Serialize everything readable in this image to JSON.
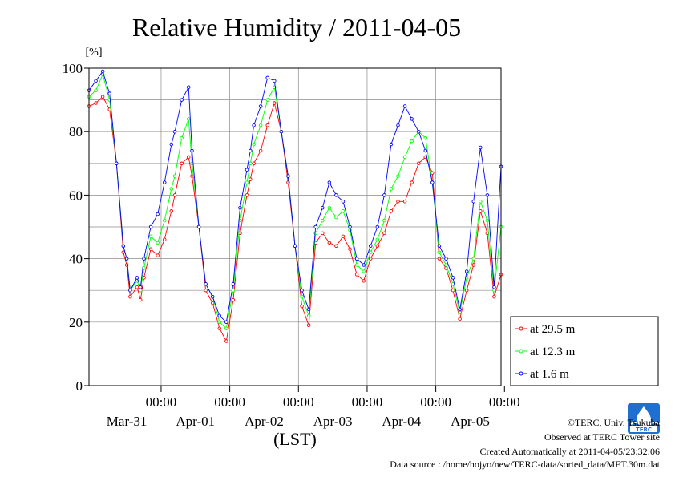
{
  "chart_data": {
    "type": "line",
    "title": "Relative Humidity / 2011-04-05",
    "ylabel": "[%]",
    "xlabel": "(LST)",
    "ylim": [
      0,
      100
    ],
    "y_ticks": [
      "0",
      "20",
      "40",
      "60",
      "80",
      "100"
    ],
    "x_ticks": [
      {
        "time": "00:00",
        "date": "Mar-31"
      },
      {
        "time": "00:00",
        "date": "Apr-01"
      },
      {
        "time": "00:00",
        "date": "Apr-02"
      },
      {
        "time": "00:00",
        "date": "Apr-03"
      },
      {
        "time": "00:00",
        "date": "Apr-04"
      },
      {
        "time": "00:00",
        "date": "Apr-05"
      }
    ],
    "x_range_days": [
      -0.05,
      5.95
    ],
    "grid": true,
    "legend_position": "right",
    "series": [
      {
        "name": "at 29.5 m",
        "color": "#ff0000",
        "x": [
          -0.05,
          0.05,
          0.15,
          0.25,
          0.35,
          0.45,
          0.5,
          0.55,
          0.65,
          0.7,
          0.75,
          0.85,
          0.95,
          1.05,
          1.15,
          1.2,
          1.3,
          1.4,
          1.45,
          1.55,
          1.65,
          1.75,
          1.85,
          1.95,
          2.05,
          2.15,
          2.25,
          2.3,
          2.35,
          2.45,
          2.55,
          2.65,
          2.75,
          2.85,
          2.95,
          3.05,
          3.15,
          3.25,
          3.35,
          3.45,
          3.55,
          3.65,
          3.75,
          3.85,
          3.95,
          4.05,
          4.15,
          4.25,
          4.35,
          4.45,
          4.55,
          4.65,
          4.75,
          4.85,
          4.95,
          5.05,
          5.15,
          5.25,
          5.35,
          5.45,
          5.55,
          5.65,
          5.75,
          5.85,
          5.95
        ],
        "y": [
          88,
          89,
          91,
          87,
          70,
          42,
          38,
          28,
          31,
          27,
          34,
          43,
          41,
          46,
          55,
          60,
          70,
          72,
          66,
          50,
          30,
          26,
          18,
          14,
          27,
          48,
          60,
          65,
          70,
          74,
          82,
          89,
          80,
          64,
          44,
          25,
          19,
          45,
          48,
          45,
          44,
          47,
          43,
          35,
          33,
          40,
          44,
          48,
          55,
          58,
          58,
          64,
          70,
          72,
          67,
          40,
          37,
          30,
          21,
          30,
          38,
          55,
          48,
          28,
          35
        ],
        "markers": true
      },
      {
        "name": "at 12.3 m",
        "color": "#00ff00",
        "x": [
          -0.05,
          0.05,
          0.15,
          0.25,
          0.35,
          0.45,
          0.5,
          0.55,
          0.65,
          0.7,
          0.75,
          0.85,
          0.95,
          1.05,
          1.15,
          1.2,
          1.3,
          1.4,
          1.45,
          1.55,
          1.65,
          1.75,
          1.85,
          1.95,
          2.05,
          2.15,
          2.25,
          2.3,
          2.35,
          2.45,
          2.55,
          2.65,
          2.75,
          2.85,
          2.95,
          3.05,
          3.15,
          3.25,
          3.35,
          3.45,
          3.55,
          3.65,
          3.75,
          3.85,
          3.95,
          4.05,
          4.15,
          4.25,
          4.35,
          4.45,
          4.55,
          4.65,
          4.75,
          4.85,
          4.95,
          5.05,
          5.15,
          5.25,
          5.35,
          5.45,
          5.55,
          5.65,
          5.75,
          5.85,
          5.95
        ],
        "y": [
          91,
          93,
          98,
          90,
          70,
          44,
          40,
          30,
          33,
          30,
          37,
          47,
          45,
          52,
          62,
          66,
          78,
          84,
          70,
          50,
          32,
          28,
          20,
          18,
          30,
          52,
          64,
          70,
          76,
          82,
          90,
          94,
          80,
          66,
          44,
          28,
          22,
          48,
          52,
          56,
          53,
          55,
          49,
          38,
          36,
          42,
          46,
          52,
          62,
          66,
          72,
          77,
          80,
          78,
          64,
          42,
          38,
          32,
          23,
          34,
          40,
          58,
          52,
          30,
          50
        ],
        "markers": true
      },
      {
        "name": "at 1.6 m",
        "color": "#0000ff",
        "x": [
          -0.05,
          0.05,
          0.15,
          0.25,
          0.35,
          0.45,
          0.5,
          0.55,
          0.65,
          0.7,
          0.75,
          0.85,
          0.95,
          1.05,
          1.15,
          1.2,
          1.3,
          1.4,
          1.45,
          1.55,
          1.65,
          1.75,
          1.85,
          1.95,
          2.05,
          2.15,
          2.25,
          2.3,
          2.35,
          2.45,
          2.55,
          2.65,
          2.75,
          2.85,
          2.95,
          3.05,
          3.15,
          3.25,
          3.35,
          3.45,
          3.55,
          3.65,
          3.75,
          3.85,
          3.95,
          4.05,
          4.15,
          4.25,
          4.35,
          4.45,
          4.55,
          4.65,
          4.75,
          4.85,
          4.95,
          5.05,
          5.15,
          5.25,
          5.35,
          5.45,
          5.55,
          5.65,
          5.75,
          5.85,
          5.95
        ],
        "y": [
          93,
          96,
          99,
          92,
          70,
          44,
          40,
          30,
          34,
          31,
          40,
          50,
          54,
          64,
          76,
          80,
          90,
          94,
          74,
          50,
          32,
          28,
          22,
          20,
          32,
          56,
          68,
          74,
          82,
          88,
          97,
          96,
          80,
          66,
          44,
          30,
          24,
          50,
          56,
          64,
          60,
          58,
          50,
          40,
          38,
          44,
          50,
          60,
          76,
          82,
          88,
          84,
          80,
          74,
          64,
          44,
          40,
          34,
          24,
          36,
          58,
          75,
          60,
          31,
          69
        ],
        "markers": true
      }
    ]
  },
  "footer": {
    "copyright": "©TERC, Univ. Tsukuba",
    "observed": "Observed at TERC Tower site",
    "created": "Created Automatically at 2011-04-05/23:32:06",
    "source": "Data source : /home/hojyo/new/TERC-data/sorted_data/MET.30m.dat"
  },
  "logo": {
    "text": "TERC",
    "color": "#1e6fd0"
  }
}
